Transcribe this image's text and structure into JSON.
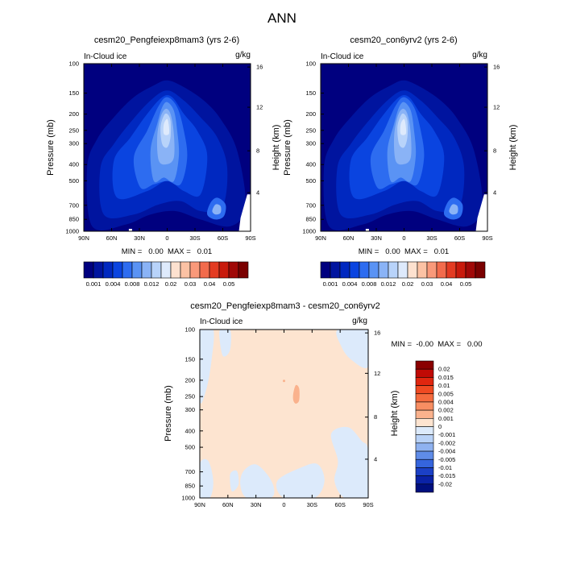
{
  "figure": {
    "title": "ANN"
  },
  "chart_data": [
    {
      "type": "heatmap",
      "title": "cesm20_Pengfeiexp8mam3 (yrs 2-6)",
      "variable": "In-Cloud ice",
      "units": "g/kg",
      "xlabel": "",
      "ylabel": "Pressure (mb)",
      "ylabel_right": "Height (km)",
      "x_ticks": [
        "90N",
        "60N",
        "30N",
        "0",
        "30S",
        "60S",
        "90S"
      ],
      "y_ticks": [
        "100",
        "150",
        "200",
        "250",
        "300",
        "400",
        "500",
        "700",
        "850",
        "1000"
      ],
      "y_ticks_right": [
        "16",
        "12",
        "8",
        "4"
      ],
      "stats": "MIN =   0.00  MAX =   0.01",
      "colorbar_labels": [
        "0.001",
        "0.004",
        "0.008",
        "0.012",
        "0.02",
        "0.03",
        "0.04",
        "0.05"
      ],
      "colorbar_colors": [
        "#00007f",
        "#00149f",
        "#0028c0",
        "#0a44e0",
        "#2d6cf0",
        "#5a93f4",
        "#8ab3f6",
        "#b8d3fa",
        "#deeafc",
        "#fde1cf",
        "#fcc2a4",
        "#f9997a",
        "#f26b4c",
        "#e33b22",
        "#c81a0c",
        "#a00807",
        "#7a0000"
      ]
    },
    {
      "type": "heatmap",
      "title": "cesm20_con6yrv2 (yrs 2-6)",
      "variable": "In-Cloud ice",
      "units": "g/kg",
      "xlabel": "",
      "ylabel": "Pressure (mb)",
      "ylabel_right": "Height (km)",
      "x_ticks": [
        "90N",
        "60N",
        "30N",
        "0",
        "30S",
        "60S",
        "90S"
      ],
      "y_ticks": [
        "100",
        "150",
        "200",
        "250",
        "300",
        "400",
        "500",
        "700",
        "850",
        "1000"
      ],
      "y_ticks_right": [
        "16",
        "12",
        "8",
        "4"
      ],
      "stats": "MIN =   0.00  MAX =   0.01",
      "colorbar_labels": [
        "0.001",
        "0.004",
        "0.008",
        "0.012",
        "0.02",
        "0.03",
        "0.04",
        "0.05"
      ],
      "colorbar_colors": [
        "#00007f",
        "#00149f",
        "#0028c0",
        "#0a44e0",
        "#2d6cf0",
        "#5a93f4",
        "#8ab3f6",
        "#b8d3fa",
        "#deeafc",
        "#fde1cf",
        "#fcc2a4",
        "#f9997a",
        "#f26b4c",
        "#e33b22",
        "#c81a0c",
        "#a00807",
        "#7a0000"
      ]
    },
    {
      "type": "heatmap",
      "title": "cesm20_Pengfeiexp8mam3 - cesm20_con6yrv2",
      "variable": "In-Cloud ice",
      "units": "g/kg",
      "xlabel": "",
      "ylabel": "Pressure (mb)",
      "ylabel_right": "Height (km)",
      "x_ticks": [
        "90N",
        "60N",
        "30N",
        "0",
        "30S",
        "60S",
        "90S"
      ],
      "y_ticks": [
        "100",
        "150",
        "200",
        "250",
        "300",
        "400",
        "500",
        "700",
        "850",
        "1000"
      ],
      "y_ticks_right": [
        "16",
        "12",
        "8",
        "4"
      ],
      "stats": "MIN =  -0.00  MAX =   0.00",
      "colorbar_labels": [
        "0.02",
        "0.015",
        "0.01",
        "0.005",
        "0.004",
        "0.002",
        "0.001",
        "0",
        "-0.001",
        "-0.002",
        "-0.004",
        "-0.005",
        "-0.01",
        "-0.015",
        "-0.02"
      ],
      "colorbar_colors": [
        "#8a0000",
        "#c00a05",
        "#e0260f",
        "#f04a22",
        "#f56b3e",
        "#f88e62",
        "#fab28d",
        "#fde4d0",
        "#dceafb",
        "#b9d2f7",
        "#8fb2f0",
        "#5f8ce8",
        "#3565dd",
        "#1b40c6",
        "#0a22a6",
        "#000f7e"
      ]
    }
  ]
}
